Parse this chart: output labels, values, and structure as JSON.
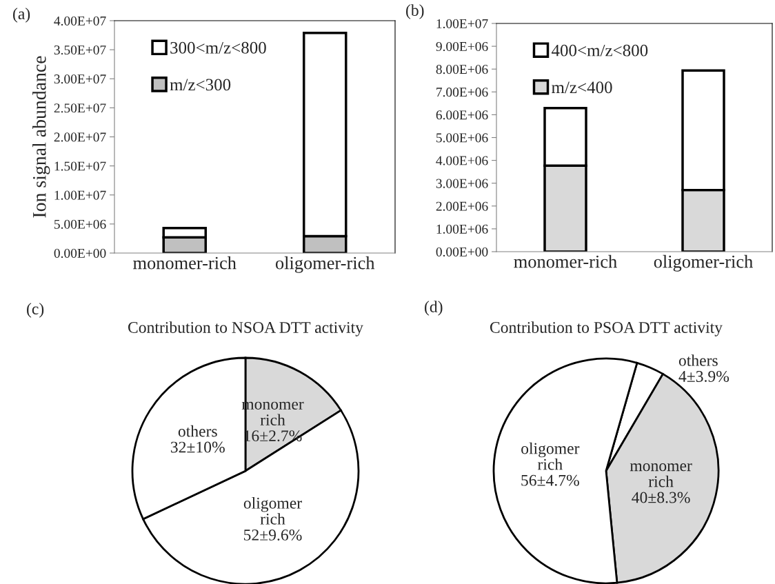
{
  "chart_data": [
    {
      "type": "bar",
      "stacked": true,
      "ylabel": "Ion signal abundance",
      "categories": [
        "monomer-rich",
        "oligomer-rich"
      ],
      "series": [
        {
          "name": "m/z<300",
          "color": "#c0c0c0",
          "values": [
            2700000.0,
            2900000.0
          ]
        },
        {
          "name": "300<m/z<800",
          "color": "#ffffff",
          "values": [
            1600000.0,
            35000000.0
          ]
        }
      ],
      "ylim": [
        0,
        40000000.0
      ],
      "yticks": [
        {
          "value": 0,
          "label": "0.00E+00"
        },
        {
          "value": 5000000.0,
          "label": "5.00E+06"
        },
        {
          "value": 10000000.0,
          "label": "1.00E+07"
        },
        {
          "value": 15000000.0,
          "label": "1.50E+07"
        },
        {
          "value": 20000000.0,
          "label": "2.00E+07"
        },
        {
          "value": 25000000.0,
          "label": "2.50E+07"
        },
        {
          "value": 30000000.0,
          "label": "3.00E+07"
        },
        {
          "value": 35000000.0,
          "label": "3.50E+07"
        },
        {
          "value": 40000000.0,
          "label": "4.00E+07"
        }
      ],
      "legend": "top left",
      "grid": false,
      "annotations": [
        "(a)"
      ]
    },
    {
      "type": "bar",
      "stacked": true,
      "categories": [
        "monomer-rich",
        "oligomer-rich"
      ],
      "series": [
        {
          "name": "m/z<400",
          "color": "#d9d9d9",
          "values": [
            3770000.0,
            2700000.0
          ]
        },
        {
          "name": "400<m/z<800",
          "color": "#ffffff",
          "values": [
            2520000.0,
            5240000.0
          ]
        }
      ],
      "ylim": [
        0,
        10000000.0
      ],
      "yticks": [
        {
          "value": 0,
          "label": "0.00E+00"
        },
        {
          "value": 1000000.0,
          "label": "1.00E+06"
        },
        {
          "value": 2000000.0,
          "label": "2.00E+06"
        },
        {
          "value": 3000000.0,
          "label": "3.00E+06"
        },
        {
          "value": 4000000.0,
          "label": "4.00E+06"
        },
        {
          "value": 5000000.0,
          "label": "5.00E+06"
        },
        {
          "value": 6000000.0,
          "label": "6.00E+06"
        },
        {
          "value": 7000000.0,
          "label": "7.00E+06"
        },
        {
          "value": 8000000.0,
          "label": "8.00E+06"
        },
        {
          "value": 9000000.0,
          "label": "9.00E+06"
        },
        {
          "value": 10000000.0,
          "label": "1.00E+07"
        }
      ],
      "legend": "top left",
      "grid": false,
      "annotations": [
        "(b)"
      ]
    },
    {
      "type": "pie",
      "title": "Contribution to NSOA DTT activity",
      "categories": [
        "monomer rich",
        "oligomer rich",
        "others"
      ],
      "values": [
        16,
        52,
        32
      ],
      "value_labels": [
        "16±2.7%",
        "52±9.6%",
        "32±10%"
      ],
      "colors": [
        "#d9d9d9",
        "#ffffff",
        "#ffffff"
      ],
      "annotations": [
        "(c)"
      ]
    },
    {
      "type": "pie",
      "title": "Contribution to PSOA DTT activity",
      "categories": [
        "others",
        "monomer rich",
        "oligomer rich"
      ],
      "values": [
        4,
        40,
        56
      ],
      "value_labels": [
        "4±3.9%",
        "40±8.3%",
        "56±4.7%"
      ],
      "colors": [
        "#ffffff",
        "#d9d9d9",
        "#ffffff"
      ],
      "annotations": [
        "(d)"
      ]
    }
  ]
}
